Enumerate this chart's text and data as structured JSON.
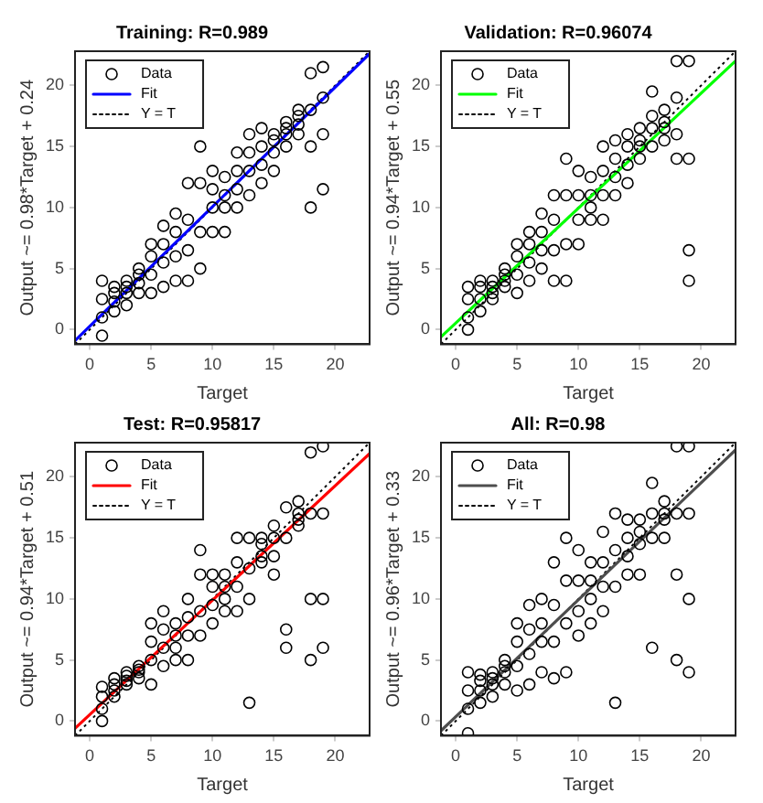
{
  "chart_data": [
    {
      "type": "scatter",
      "title": "Training: R=0.989",
      "xlabel": "Target",
      "ylabel": "Output ~= 0.98*Target + 0.24",
      "xlim": [
        -1.2,
        22.8
      ],
      "ylim": [
        -1.2,
        22.8
      ],
      "xticks": [
        0,
        5,
        10,
        15,
        20
      ],
      "yticks": [
        0,
        5,
        10,
        15,
        20
      ],
      "grid": false,
      "legend": "top left",
      "series": [
        {
          "name": "Data",
          "type": "scatter",
          "color": "#000000",
          "marker": "circle",
          "x": [
            1,
            1,
            1,
            1,
            2,
            2,
            2,
            2,
            3,
            3,
            3,
            3,
            4,
            4,
            4,
            4,
            5,
            5,
            5,
            5,
            6,
            6,
            6,
            6,
            7,
            7,
            7,
            7,
            8,
            8,
            8,
            8,
            9,
            9,
            9,
            9,
            10,
            10,
            10,
            10,
            11,
            11,
            11,
            11,
            12,
            12,
            12,
            12,
            13,
            13,
            13,
            13,
            14,
            14,
            14,
            14,
            15,
            15,
            15,
            15,
            16,
            16,
            16,
            16,
            17,
            17,
            17,
            17,
            18,
            18,
            18,
            18,
            19,
            19,
            19,
            19
          ],
          "values": [
            -0.5,
            1,
            2.5,
            4,
            1.5,
            2.3,
            3,
            3.5,
            2,
            3,
            3.5,
            4,
            3,
            3.8,
            4.5,
            5,
            3,
            4.5,
            6,
            7,
            3.5,
            5.5,
            7,
            8.5,
            4,
            6,
            8,
            9.5,
            4,
            6.5,
            9,
            12,
            5,
            8,
            12,
            15,
            8,
            10,
            11.5,
            13,
            8,
            10,
            11,
            12.5,
            10,
            11.5,
            13,
            14.5,
            11,
            13,
            14.5,
            16,
            12,
            13.5,
            15,
            16.5,
            13,
            14.5,
            15.5,
            16,
            15,
            16,
            16.5,
            17,
            16,
            16.8,
            17.5,
            18,
            10,
            15,
            18,
            21,
            11.5,
            16,
            19,
            21.5
          ]
        },
        {
          "name": "Fit",
          "type": "line",
          "color": "#0000ff",
          "x": [
            -1.2,
            22.8
          ],
          "values": [
            -0.9,
            22.6
          ]
        },
        {
          "name": "Y = T",
          "type": "line",
          "color": "#000000",
          "line_style": "dotted",
          "x": [
            -1.2,
            22.8
          ],
          "values": [
            -1.2,
            22.8
          ]
        }
      ]
    },
    {
      "type": "scatter",
      "title": "Validation: R=0.96074",
      "xlabel": "Target",
      "ylabel": "Output ~= 0.94*Target + 0.55",
      "xlim": [
        -1.2,
        22.8
      ],
      "ylim": [
        -1.2,
        22.8
      ],
      "xticks": [
        0,
        5,
        10,
        15,
        20
      ],
      "yticks": [
        0,
        5,
        10,
        15,
        20
      ],
      "grid": false,
      "legend": "top left",
      "series": [
        {
          "name": "Data",
          "type": "scatter",
          "color": "#000000",
          "marker": "circle",
          "x": [
            1,
            1,
            1,
            1,
            2,
            2,
            2,
            2,
            3,
            3,
            3,
            3,
            4,
            4,
            4,
            4,
            5,
            5,
            5,
            5,
            6,
            6,
            6,
            6,
            7,
            7,
            7,
            7,
            8,
            8,
            8,
            8,
            9,
            9,
            9,
            9,
            10,
            10,
            10,
            10,
            11,
            11,
            11,
            11,
            12,
            12,
            12,
            12,
            13,
            13,
            13,
            13,
            14,
            14,
            14,
            14,
            15,
            15,
            15,
            15,
            16,
            16,
            16,
            16,
            17,
            17,
            17,
            17,
            18,
            18,
            18,
            18,
            19,
            19,
            19,
            19
          ],
          "values": [
            0,
            1,
            2.5,
            3.5,
            1.5,
            2.5,
            3.5,
            4,
            2.5,
            3,
            3.5,
            4,
            3.5,
            4,
            4.5,
            5,
            3,
            4.5,
            6,
            7,
            4,
            5.5,
            7,
            8,
            5,
            6.5,
            8,
            9.5,
            4,
            6.5,
            9,
            11,
            4,
            7,
            11,
            14,
            7,
            9,
            11,
            13,
            9,
            10,
            11,
            12.5,
            9,
            11,
            13,
            15,
            11,
            12.5,
            14,
            15.5,
            12,
            13.5,
            15,
            16,
            14,
            15,
            15.5,
            16.5,
            15,
            16.5,
            17.5,
            19.5,
            15.5,
            16.5,
            17,
            18,
            14,
            16,
            19,
            22,
            4,
            6.5,
            14,
            22
          ]
        },
        {
          "name": "Fit",
          "type": "line",
          "color": "#00ff00",
          "x": [
            -1.2,
            22.8
          ],
          "values": [
            -0.6,
            22.0
          ]
        },
        {
          "name": "Y = T",
          "type": "line",
          "color": "#000000",
          "line_style": "dotted",
          "x": [
            -1.2,
            22.8
          ],
          "values": [
            -1.2,
            22.8
          ]
        }
      ]
    },
    {
      "type": "scatter",
      "title": "Test: R=0.95817",
      "xlabel": "Target",
      "ylabel": "Output ~= 0.94*Target + 0.51",
      "xlim": [
        -1.2,
        22.8
      ],
      "ylim": [
        -1.2,
        22.8
      ],
      "xticks": [
        0,
        5,
        10,
        15,
        20
      ],
      "yticks": [
        0,
        5,
        10,
        15,
        20
      ],
      "grid": false,
      "legend": "top left",
      "series": [
        {
          "name": "Data",
          "type": "scatter",
          "color": "#000000",
          "marker": "circle",
          "x": [
            1,
            1,
            1,
            1,
            2,
            2,
            2,
            2,
            3,
            3,
            3,
            3,
            4,
            4,
            4,
            4,
            5,
            5,
            5,
            5,
            6,
            6,
            6,
            6,
            7,
            7,
            7,
            7,
            8,
            8,
            8,
            8,
            9,
            9,
            9,
            9,
            10,
            10,
            10,
            10,
            11,
            11,
            11,
            11,
            12,
            12,
            12,
            12,
            13,
            13,
            13,
            13,
            14,
            14,
            14,
            14,
            15,
            15,
            15,
            15,
            16,
            16,
            16,
            16,
            17,
            17,
            17,
            17,
            18,
            18,
            18,
            18,
            19,
            19,
            19,
            19
          ],
          "values": [
            0,
            1,
            2,
            2.8,
            2,
            2.5,
            3,
            3.5,
            3,
            3.3,
            3.7,
            4,
            3.5,
            4,
            4.2,
            4.5,
            3,
            5,
            6.5,
            8,
            4.5,
            6,
            7.5,
            9,
            5,
            6,
            7,
            8,
            5,
            7,
            8.5,
            10,
            7,
            9,
            12,
            14,
            8,
            9.5,
            11,
            12,
            9,
            10,
            11,
            12,
            9,
            11,
            13,
            15,
            1.5,
            10,
            12.5,
            15,
            13,
            13.5,
            14.5,
            15,
            12,
            13.5,
            15,
            16,
            6,
            7.5,
            15,
            17.5,
            16,
            16.5,
            17,
            18,
            5,
            10,
            17,
            22,
            6,
            10,
            17,
            22.5
          ]
        },
        {
          "name": "Fit",
          "type": "line",
          "color": "#ff0000",
          "x": [
            -1.2,
            22.8
          ],
          "values": [
            -0.6,
            21.9
          ]
        },
        {
          "name": "Y = T",
          "type": "line",
          "color": "#000000",
          "line_style": "dotted",
          "x": [
            -1.2,
            22.8
          ],
          "values": [
            -1.2,
            22.8
          ]
        }
      ]
    },
    {
      "type": "scatter",
      "title": "All: R=0.98",
      "xlabel": "Target",
      "ylabel": "Output ~= 0.96*Target + 0.33",
      "xlim": [
        -1.2,
        22.8
      ],
      "ylim": [
        -1.2,
        22.8
      ],
      "xticks": [
        0,
        5,
        10,
        15,
        20
      ],
      "yticks": [
        0,
        5,
        10,
        15,
        20
      ],
      "grid": false,
      "legend": "top left",
      "series": [
        {
          "name": "Data",
          "type": "scatter",
          "color": "#000000",
          "marker": "circle",
          "x": [
            1,
            1,
            1,
            1,
            2,
            2,
            2,
            2,
            3,
            3,
            3,
            3,
            4,
            4,
            4,
            4,
            5,
            5,
            5,
            5,
            6,
            6,
            6,
            6,
            7,
            7,
            7,
            7,
            8,
            8,
            8,
            8,
            9,
            9,
            9,
            9,
            10,
            10,
            10,
            10,
            11,
            11,
            11,
            11,
            12,
            12,
            12,
            12,
            13,
            13,
            13,
            13,
            14,
            14,
            14,
            14,
            15,
            15,
            15,
            15,
            16,
            16,
            16,
            16,
            17,
            17,
            17,
            17,
            18,
            18,
            18,
            18,
            19,
            19,
            19,
            19
          ],
          "values": [
            -1,
            1,
            2.5,
            4,
            1.5,
            2.5,
            3.3,
            3.8,
            2,
            3,
            3.5,
            4,
            3,
            4,
            4.5,
            5,
            2.5,
            4.5,
            6.5,
            8,
            3,
            5.5,
            7.5,
            9.5,
            4,
            6.5,
            8,
            10,
            3.5,
            6.5,
            9.5,
            13,
            4,
            8,
            11.5,
            15,
            7,
            9,
            11.5,
            14,
            8,
            10,
            11.5,
            13,
            9,
            11,
            13,
            15.5,
            1.5,
            11,
            14,
            17,
            12,
            13.5,
            15,
            16.5,
            12,
            14.5,
            15.5,
            16.5,
            6,
            15,
            17,
            19.5,
            15,
            16.5,
            17,
            18,
            5,
            12,
            17,
            22.5,
            4,
            10,
            17,
            22.5
          ]
        },
        {
          "name": "Fit",
          "type": "line",
          "color": "#4d4d4d",
          "x": [
            -1.2,
            22.8
          ],
          "values": [
            -0.8,
            22.2
          ]
        },
        {
          "name": "Y = T",
          "type": "line",
          "color": "#000000",
          "line_style": "dotted",
          "x": [
            -1.2,
            22.8
          ],
          "values": [
            -1.2,
            22.8
          ]
        }
      ]
    }
  ]
}
